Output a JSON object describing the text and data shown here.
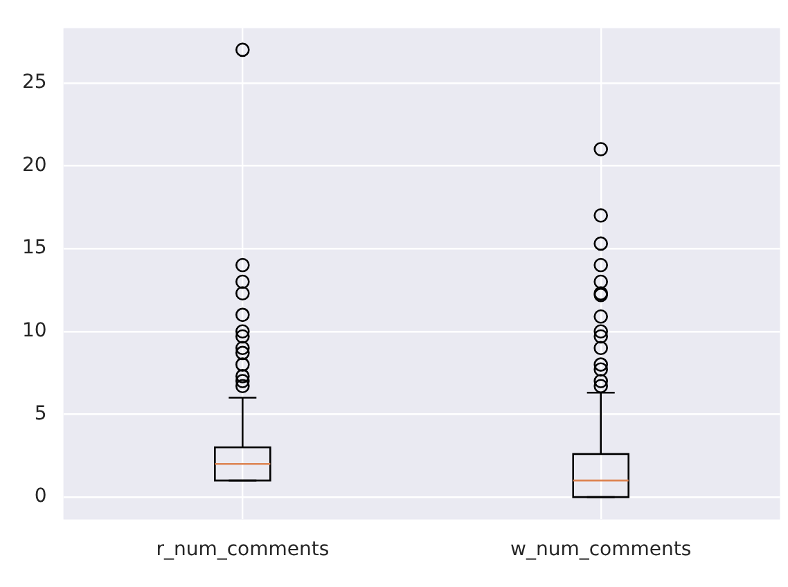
{
  "chart_data": {
    "type": "box",
    "categories": [
      "r_num_comments",
      "w_num_comments"
    ],
    "boxes": [
      {
        "low": 1,
        "q1": 1,
        "median": 2,
        "q3": 3,
        "high": 6,
        "outliers": [
          6.7,
          7,
          7.3,
          8,
          8.7,
          9,
          9.7,
          10,
          11,
          12.3,
          13,
          14,
          27
        ]
      },
      {
        "low": 0,
        "q1": 0,
        "median": 1,
        "q3": 2.6,
        "high": 6.3,
        "outliers": [
          6.7,
          7,
          7.7,
          8,
          9,
          9.7,
          10,
          10.9,
          12.2,
          12.3,
          13,
          14,
          15.3,
          17,
          21
        ]
      }
    ],
    "color": "#000000",
    "ylim": [
      -1.35,
      28.3
    ],
    "yticks": [
      0,
      5,
      10,
      15,
      20,
      25
    ],
    "grid": true,
    "marker": "circle",
    "legend": false
  }
}
